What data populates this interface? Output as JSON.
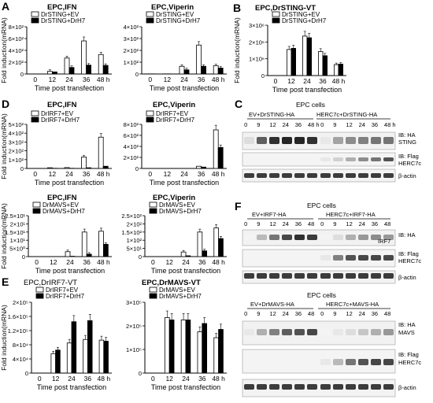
{
  "panels": {
    "A": "A",
    "B": "B",
    "C": "C",
    "D": "D",
    "E": "E",
    "F": "F"
  },
  "time_post_transfection": "Time post transfection",
  "fold_induction": "Fold induction(mRNA)",
  "chart_data": [
    {
      "id": "A1",
      "type": "bar",
      "title": "EPC,IFN",
      "xlabel": "Time post transfection",
      "ylabel": "Fold induction(mRNA)",
      "categories": [
        "0",
        "12",
        "24",
        "36",
        "48 h"
      ],
      "ylim": [
        0,
        800
      ],
      "yticks": [
        {
          "v": 0,
          "t": "0"
        },
        {
          "v": 200,
          "t": "2×10²"
        },
        {
          "v": 400,
          "t": "4×10²"
        },
        {
          "v": 600,
          "t": "6×10²"
        },
        {
          "v": 800,
          "t": "8×10²"
        }
      ],
      "series": [
        {
          "name": "DrSTING+EV",
          "color": "#ffffff",
          "values": [
            1,
            45,
            270,
            560,
            330
          ]
        },
        {
          "name": "DrSTING+DrH7",
          "color": "#000000",
          "values": [
            1,
            35,
            110,
            150,
            145
          ]
        }
      ]
    },
    {
      "id": "A2",
      "type": "bar",
      "title": "EPC,Viperin",
      "xlabel": "Time post transfection",
      "ylabel": "",
      "categories": [
        "0",
        "12",
        "24",
        "36",
        "48 h"
      ],
      "ylim": [
        0,
        400
      ],
      "yticks": [
        {
          "v": 0,
          "t": "0"
        },
        {
          "v": 100,
          "t": "1×10²"
        },
        {
          "v": 200,
          "t": "2×10²"
        },
        {
          "v": 300,
          "t": "3×10²"
        },
        {
          "v": 400,
          "t": "4×10²"
        }
      ],
      "series": [
        {
          "name": "DrSTING+EV",
          "color": "#ffffff",
          "values": [
            1,
            1,
            65,
            245,
            70
          ]
        },
        {
          "name": "DrSTING+DrH7",
          "color": "#000000",
          "values": [
            1,
            1,
            35,
            65,
            50
          ]
        }
      ]
    },
    {
      "id": "B",
      "type": "bar",
      "title": "EPC,DrSTING-VT",
      "xlabel": "Time post transfection",
      "ylabel": "Fold induction(mRNA)",
      "categories": [
        "0",
        "12",
        "24",
        "36",
        "48 h"
      ],
      "ylim": [
        0,
        3000000
      ],
      "yticks": [
        {
          "v": 0,
          "t": "0"
        },
        {
          "v": 1000000,
          "t": "1×10⁶"
        },
        {
          "v": 2000000,
          "t": "2×10⁶"
        },
        {
          "v": 3000000,
          "t": "3×10⁶"
        }
      ],
      "series": [
        {
          "name": "DrSTING+EV",
          "color": "#ffffff",
          "values": [
            0,
            1550000,
            2350000,
            1430000,
            650000
          ]
        },
        {
          "name": "DrSTING+DrH7",
          "color": "#000000",
          "values": [
            0,
            1620000,
            2250000,
            1180000,
            680000
          ]
        }
      ]
    },
    {
      "id": "D1",
      "type": "bar",
      "title": "EPC,IFN",
      "xlabel": "Time post transfection",
      "ylabel": "Fold induction(mRNA)",
      "categories": [
        "0",
        "12",
        "24",
        "36",
        "48 h"
      ],
      "ylim": [
        0,
        500
      ],
      "yticks": [
        {
          "v": 0,
          "t": "0"
        },
        {
          "v": 100,
          "t": "1×10²"
        },
        {
          "v": 200,
          "t": "2×10²"
        },
        {
          "v": 300,
          "t": "3×10²"
        },
        {
          "v": 400,
          "t": "4×10²"
        },
        {
          "v": 500,
          "t": "5×10²"
        }
      ],
      "series": [
        {
          "name": "DrIRF7+EV",
          "color": "#ffffff",
          "values": [
            1,
            8,
            10,
            130,
            355
          ]
        },
        {
          "name": "DrIRF7+DrH7",
          "color": "#000000",
          "values": [
            1,
            2,
            2,
            8,
            25
          ]
        }
      ]
    },
    {
      "id": "D2",
      "type": "bar",
      "title": "EPC,Viperin",
      "xlabel": "Time post transfection",
      "ylabel": "",
      "categories": [
        "0",
        "12",
        "24",
        "36",
        "48 h"
      ],
      "ylim": [
        0,
        800
      ],
      "yticks": [
        {
          "v": 0,
          "t": "0"
        },
        {
          "v": 200,
          "t": "2×10²"
        },
        {
          "v": 400,
          "t": "4×10²"
        },
        {
          "v": 600,
          "t": "6×10²"
        },
        {
          "v": 800,
          "t": "8×10²"
        }
      ],
      "series": [
        {
          "name": "DrIRF7+EV",
          "color": "#ffffff",
          "values": [
            1,
            1,
            1,
            40,
            700
          ]
        },
        {
          "name": "DrIRF7+DrH7",
          "color": "#000000",
          "values": [
            1,
            1,
            1,
            25,
            380
          ]
        }
      ]
    },
    {
      "id": "D3",
      "type": "bar",
      "title": "EPC,IFN",
      "xlabel": "Time post transfection",
      "ylabel": "Fold induction(mRNA)",
      "categories": [
        "0",
        "12",
        "24",
        "36",
        "48 h"
      ],
      "ylim": [
        0,
        25
      ],
      "yticks": [
        {
          "v": 0,
          "t": "0"
        },
        {
          "v": 5,
          "t": "5×10⁰"
        },
        {
          "v": 10,
          "t": "1×10¹"
        },
        {
          "v": 15,
          "t": "1.5×10¹"
        },
        {
          "v": 20,
          "t": "2×10¹"
        },
        {
          "v": 25,
          "t": "2.5×10¹"
        }
      ],
      "series": [
        {
          "name": "DrMAVS+EV",
          "color": "#ffffff",
          "values": [
            0,
            0,
            3,
            15,
            15.5
          ]
        },
        {
          "name": "DrMAVS+DrH7",
          "color": "#000000",
          "values": [
            0,
            0,
            0.2,
            1.5,
            7.5
          ]
        }
      ]
    },
    {
      "id": "D4",
      "type": "bar",
      "title": "EPC,Viperin",
      "xlabel": "Time post transfection",
      "ylabel": "",
      "categories": [
        "0",
        "12",
        "24",
        "36",
        "48 h"
      ],
      "ylim": [
        0,
        250
      ],
      "yticks": [
        {
          "v": 0,
          "t": "0"
        },
        {
          "v": 50,
          "t": "5×10¹"
        },
        {
          "v": 100,
          "t": "1×10²"
        },
        {
          "v": 150,
          "t": "1.5×10²"
        },
        {
          "v": 200,
          "t": "2×10²"
        },
        {
          "v": 250,
          "t": "2.5×10²"
        }
      ],
      "series": [
        {
          "name": "DrMAVS+EV",
          "color": "#ffffff",
          "values": [
            0,
            0,
            28,
            150,
            175
          ]
        },
        {
          "name": "DrMAVS+DrH7",
          "color": "#000000",
          "values": [
            0,
            0,
            5,
            35,
            110
          ]
        }
      ]
    },
    {
      "id": "E1",
      "type": "bar",
      "title": "EPC,DrIRF7-VT",
      "xlabel": "Time post transfection",
      "ylabel": "Fold induction(mRNA)",
      "categories": [
        "0",
        "12",
        "24",
        "36",
        "48 h"
      ],
      "ylim": [
        0,
        200000
      ],
      "yticks": [
        {
          "v": 0,
          "t": "0"
        },
        {
          "v": 40000,
          "t": "4×10⁴"
        },
        {
          "v": 80000,
          "t": "8×10⁴"
        },
        {
          "v": 120000,
          "t": "1.2×10⁵"
        },
        {
          "v": 160000,
          "t": "1.6×10⁵"
        },
        {
          "v": 200000,
          "t": "2×10⁵"
        }
      ],
      "series": [
        {
          "name": "DrIRF7+EV",
          "color": "#ffffff",
          "values": [
            0,
            55000,
            85000,
            95000,
            93000
          ]
        },
        {
          "name": "DrIRF7+DrH7",
          "color": "#000000",
          "values": [
            0,
            65000,
            145000,
            148000,
            90000
          ]
        }
      ]
    },
    {
      "id": "E2",
      "type": "bar",
      "title": "EPC,DrMAVS-VT",
      "xlabel": "Time post transfection",
      "ylabel": "",
      "categories": [
        "0",
        "12",
        "24",
        "36",
        "48 h"
      ],
      "ylim": [
        0,
        300000
      ],
      "yticks": [
        {
          "v": 0,
          "t": "0"
        },
        {
          "v": 100000,
          "t": "1×10⁵"
        },
        {
          "v": 200000,
          "t": "2×10⁵"
        },
        {
          "v": 300000,
          "t": "3×10⁵"
        }
      ],
      "series": [
        {
          "name": "DrMAVS+EV",
          "color": "#ffffff",
          "values": [
            0,
            235000,
            225000,
            175000,
            150000
          ]
        },
        {
          "name": "DrMAVS+DrH7",
          "color": "#000000",
          "values": [
            0,
            225000,
            225000,
            210000,
            185000
          ]
        }
      ]
    }
  ],
  "blots": {
    "C": {
      "cells": "EPC cells",
      "group1": "EV+DrSTING-HA",
      "group2": "HERC7c+DrSTING-HA",
      "lanes": [
        "0",
        "9",
        "12",
        "24",
        "36",
        "48 h",
        "0",
        "9",
        "12",
        "24",
        "36",
        "48 h"
      ],
      "ib_ha": "IB: HA",
      "sting": "STING",
      "ib_flag": "IB: Flag",
      "herc": "HERC7c",
      "actin": "β-actin"
    },
    "F1": {
      "cells": "EPC cells",
      "group1": "EV+IRF7-HA",
      "group2": "HERC7c+IRF7-HA",
      "lanes": [
        "0",
        "9",
        "12",
        "24",
        "36",
        "48",
        "0",
        "9",
        "12",
        "24",
        "36",
        "48"
      ],
      "ib_ha": "IB: HA",
      "irf7": "IRF7",
      "ib_flag": "IB: Flag",
      "herc": "HERC7c",
      "actin": "β-actin"
    },
    "F2": {
      "cells": "EPC cells",
      "group1": "EV+DrMAVS-HA",
      "group2": "HERC7c+MAVS-HA",
      "lanes": [
        "0",
        "9",
        "12",
        "24",
        "36",
        "48",
        "0",
        "9",
        "12",
        "24",
        "36",
        "48"
      ],
      "ib_ha": "IB: HA",
      "mavs": "MAVS",
      "ib_flag": "IB: Flag",
      "herc": "HERC7c",
      "actin": "β-actin"
    }
  }
}
